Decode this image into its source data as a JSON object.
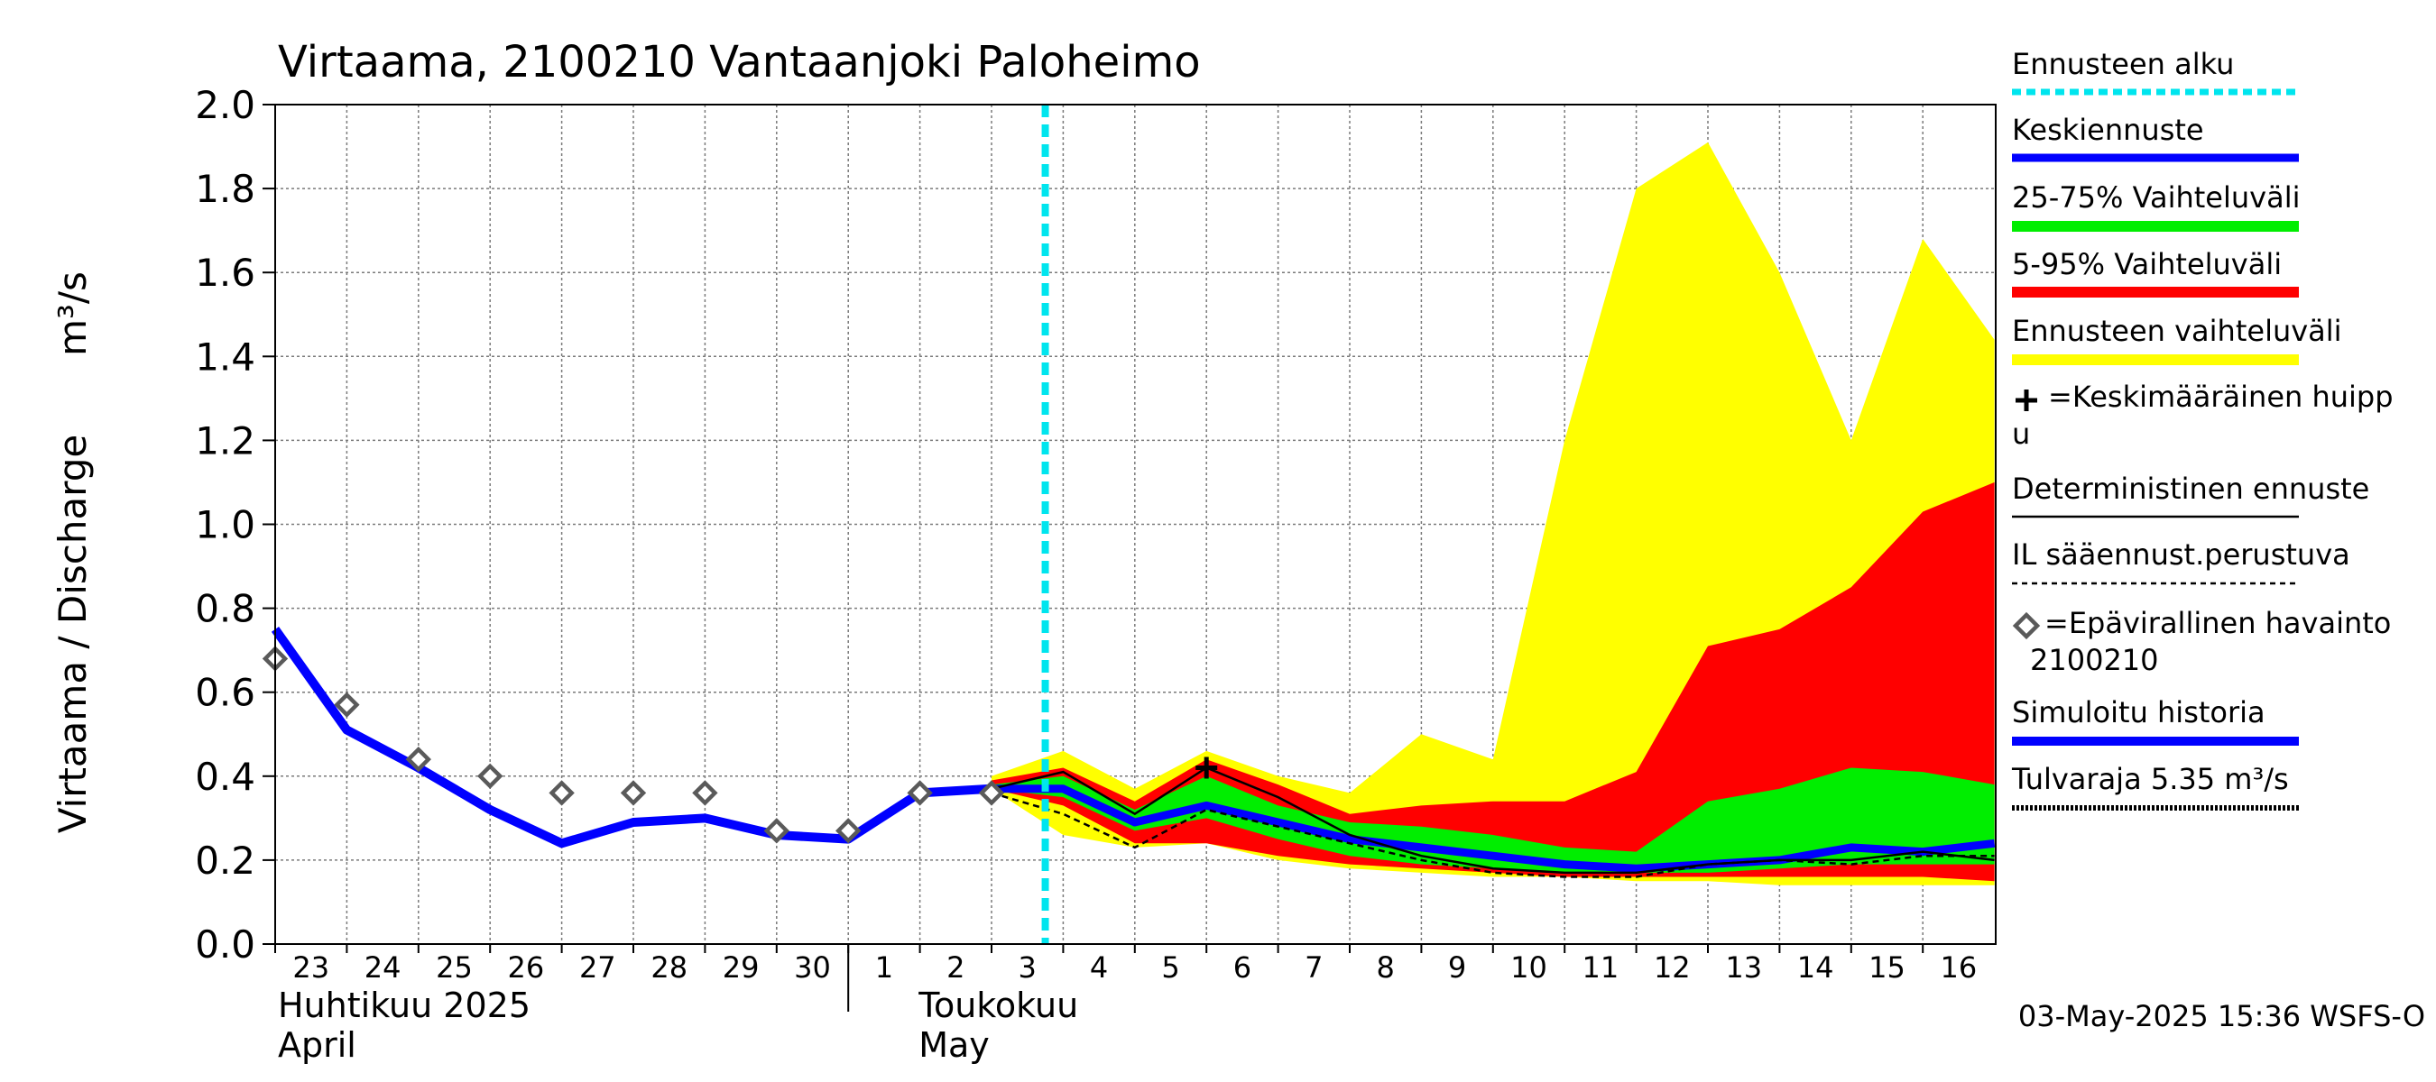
{
  "chart_data": {
    "type": "area",
    "title": "Virtaama, 2100210 Vantaanjoki Paloheimo",
    "ylabel": "Virtaama / Discharge",
    "yunit": "m³/s",
    "ylim": [
      0,
      2.0
    ],
    "yticks": [
      "0.0",
      "0.2",
      "0.4",
      "0.6",
      "0.8",
      "1.0",
      "1.2",
      "1.4",
      "1.6",
      "1.8",
      "2.0"
    ],
    "grid": true,
    "x_dates": [
      "2025-04-23",
      "2025-04-24",
      "2025-04-25",
      "2025-04-26",
      "2025-04-27",
      "2025-04-28",
      "2025-04-29",
      "2025-04-30",
      "2025-05-01",
      "2025-05-02",
      "2025-05-03",
      "2025-05-04",
      "2025-05-05",
      "2025-05-06",
      "2025-05-07",
      "2025-05-08",
      "2025-05-09",
      "2025-05-10",
      "2025-05-11",
      "2025-05-12",
      "2025-05-13",
      "2025-05-14",
      "2025-05-15",
      "2025-05-16"
    ],
    "x_tick_labels": [
      "23",
      "24",
      "25",
      "26",
      "27",
      "28",
      "29",
      "30",
      "1",
      "2",
      "3",
      "4",
      "5",
      "6",
      "7",
      "8",
      "9",
      "10",
      "11",
      "12",
      "13",
      "14",
      "15",
      "16"
    ],
    "xlim": [
      "2025-04-23",
      "2025-05-17"
    ],
    "month_labels": [
      {
        "fi": "Huhtikuu  2025",
        "en": "April",
        "start": "2025-04-23"
      },
      {
        "fi": "Toukokuu",
        "en": "May",
        "start": "2025-05-01"
      }
    ],
    "forecast_start": "2025-05-03 18:00",
    "forecast_x": [
      "2025-05-03",
      "2025-05-04",
      "2025-05-05",
      "2025-05-06",
      "2025-05-07",
      "2025-05-08",
      "2025-05-09",
      "2025-05-10",
      "2025-05-11",
      "2025-05-12",
      "2025-05-13",
      "2025-05-14",
      "2025-05-15",
      "2025-05-16",
      "2025-05-17"
    ],
    "ensemble_range": {
      "lower": [
        0.37,
        0.26,
        0.23,
        0.24,
        0.2,
        0.18,
        0.17,
        0.16,
        0.16,
        0.15,
        0.15,
        0.14,
        0.14,
        0.14,
        0.14
      ],
      "upper": [
        0.4,
        0.46,
        0.37,
        0.46,
        0.4,
        0.36,
        0.5,
        0.44,
        1.2,
        1.8,
        1.91,
        1.6,
        1.2,
        1.68,
        1.44
      ]
    },
    "band_5_95": {
      "lower": [
        0.37,
        0.33,
        0.24,
        0.24,
        0.21,
        0.19,
        0.18,
        0.17,
        0.16,
        0.16,
        0.16,
        0.16,
        0.16,
        0.16,
        0.15
      ],
      "upper": [
        0.39,
        0.42,
        0.34,
        0.44,
        0.38,
        0.31,
        0.33,
        0.34,
        0.34,
        0.41,
        0.71,
        0.75,
        0.85,
        1.03,
        1.1
      ]
    },
    "band_25_75": {
      "lower": [
        0.37,
        0.35,
        0.27,
        0.3,
        0.25,
        0.21,
        0.19,
        0.18,
        0.17,
        0.17,
        0.17,
        0.18,
        0.19,
        0.19,
        0.19
      ],
      "upper": [
        0.38,
        0.4,
        0.32,
        0.4,
        0.33,
        0.29,
        0.28,
        0.26,
        0.23,
        0.22,
        0.34,
        0.37,
        0.42,
        0.41,
        0.38
      ]
    },
    "median_forecast": [
      0.37,
      0.37,
      0.29,
      0.33,
      0.29,
      0.25,
      0.23,
      0.21,
      0.19,
      0.18,
      0.19,
      0.2,
      0.23,
      0.22,
      0.24
    ],
    "deterministic_forecast": [
      0.37,
      0.41,
      0.31,
      0.42,
      0.35,
      0.26,
      0.21,
      0.18,
      0.17,
      0.17,
      0.19,
      0.2,
      0.2,
      0.22,
      0.2
    ],
    "il_forecast": {
      "x": [
        "2025-05-03",
        "2025-05-04",
        "2025-05-05",
        "2025-05-06",
        "2025-05-07",
        "2025-05-08",
        "2025-05-09",
        "2025-05-10",
        "2025-05-11",
        "2025-05-12",
        "2025-05-13",
        "2025-05-14",
        "2025-05-15",
        "2025-05-16",
        "2025-05-17"
      ],
      "values": [
        0.36,
        0.31,
        0.23,
        0.32,
        0.28,
        0.24,
        0.2,
        0.17,
        0.16,
        0.16,
        0.19,
        0.2,
        0.19,
        0.21,
        0.21
      ]
    },
    "mean_peak": {
      "x": "2025-05-06",
      "value": 0.42
    },
    "simulated_history": {
      "x": [
        "2025-04-23",
        "2025-04-24",
        "2025-04-25",
        "2025-04-26",
        "2025-04-27",
        "2025-04-28",
        "2025-04-29",
        "2025-04-30",
        "2025-05-01",
        "2025-05-02",
        "2025-05-03"
      ],
      "values": [
        0.75,
        0.51,
        0.42,
        0.32,
        0.24,
        0.29,
        0.3,
        0.26,
        0.25,
        0.36,
        0.37
      ]
    },
    "observations": {
      "x": [
        "2025-04-23",
        "2025-04-24",
        "2025-04-25",
        "2025-04-26",
        "2025-04-27",
        "2025-04-28",
        "2025-04-29",
        "2025-04-30",
        "2025-05-01",
        "2025-05-02",
        "2025-05-03"
      ],
      "values": [
        0.68,
        0.57,
        0.44,
        0.4,
        0.36,
        0.36,
        0.36,
        0.27,
        0.27,
        0.36,
        0.36
      ]
    },
    "flood_limit": 5.35,
    "colors": {
      "ensemble": "#ffff00",
      "band_5_95": "#ff0000",
      "band_25_75": "#00ee00",
      "median": "#0000ff",
      "simulated": "#0000ff",
      "forecast_start": "#00e5ee",
      "deterministic": "#000000",
      "observation": "#5a5a5a",
      "grid": "#7a7a7a"
    },
    "legend_position": "right",
    "legend": [
      {
        "key": "forecast_start",
        "label": "Ennusteen alku"
      },
      {
        "key": "median",
        "label": "Keskiennuste"
      },
      {
        "key": "band_25_75",
        "label": "25-75% Vaihteluväli"
      },
      {
        "key": "band_5_95",
        "label": "5-95% Vaihteluväli"
      },
      {
        "key": "ensemble",
        "label": "Ennusteen vaihteluväli"
      },
      {
        "key": "mean_peak",
        "label": "=Keskimääräinen huipp",
        "label2": "u"
      },
      {
        "key": "deterministic",
        "label": "Deterministinen ennuste"
      },
      {
        "key": "il_forecast",
        "label": "IL sääennust.perustuva"
      },
      {
        "key": "observations",
        "label": "=Epävirallinen havainto",
        "label2": "2100210"
      },
      {
        "key": "simulated",
        "label": "Simuloitu historia"
      },
      {
        "key": "flood_limit",
        "label": "Tulvaraja 5.35 m³/s"
      }
    ],
    "timestamp": "03-May-2025 15:36 WSFS-O"
  }
}
